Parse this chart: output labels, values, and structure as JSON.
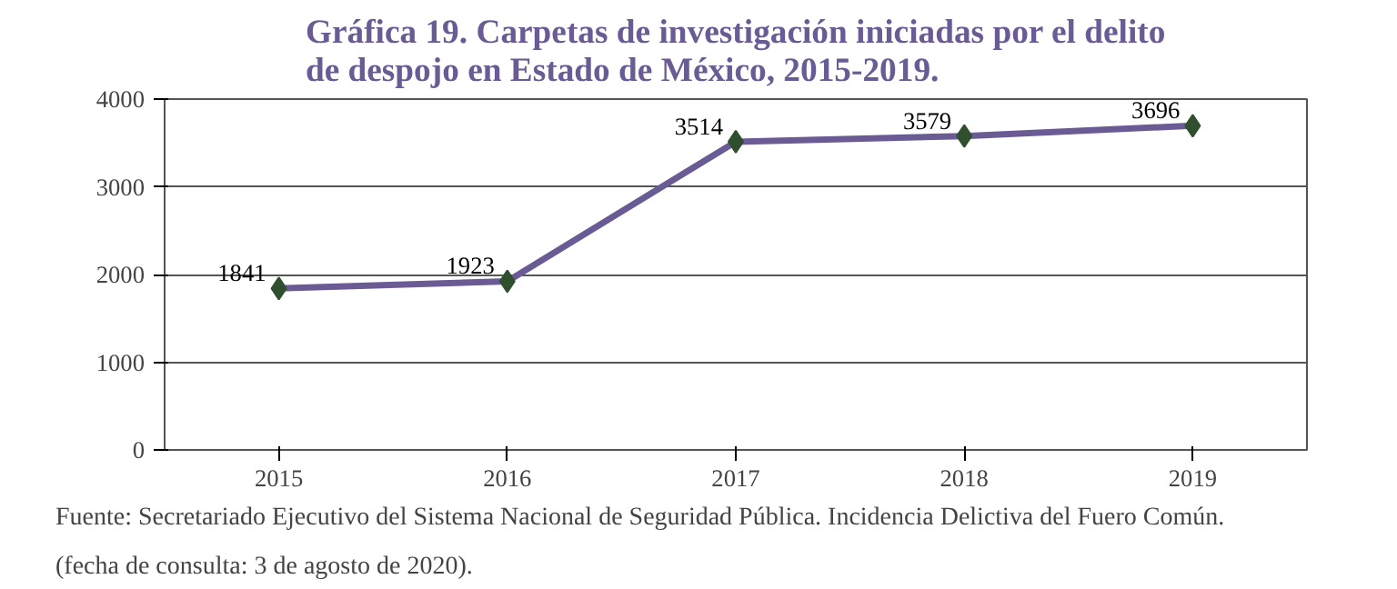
{
  "chart_data": {
    "type": "line",
    "title": "Gráfica 19. Carpetas de investigación iniciadas por el delito de despojo en Estado de México, 2015-2019.",
    "categories": [
      "2015",
      "2016",
      "2017",
      "2018",
      "2019"
    ],
    "series": [
      {
        "color": "#6b5b95",
        "values": [
          1841,
          1923,
          3514,
          3579,
          3696
        ]
      }
    ],
    "ylim": [
      0,
      4000
    ],
    "yticks": [
      0,
      1000,
      2000,
      3000,
      4000
    ],
    "grid": "y",
    "marker": "diamond",
    "data_labels": true,
    "annotations": [
      "Fuente: Secretariado Ejecutivo del Sistema Nacional de Seguridad Pública. Incidencia Delictiva del Fuero Común.",
      "(fecha de consulta: 3 de agosto de 2020)."
    ]
  }
}
